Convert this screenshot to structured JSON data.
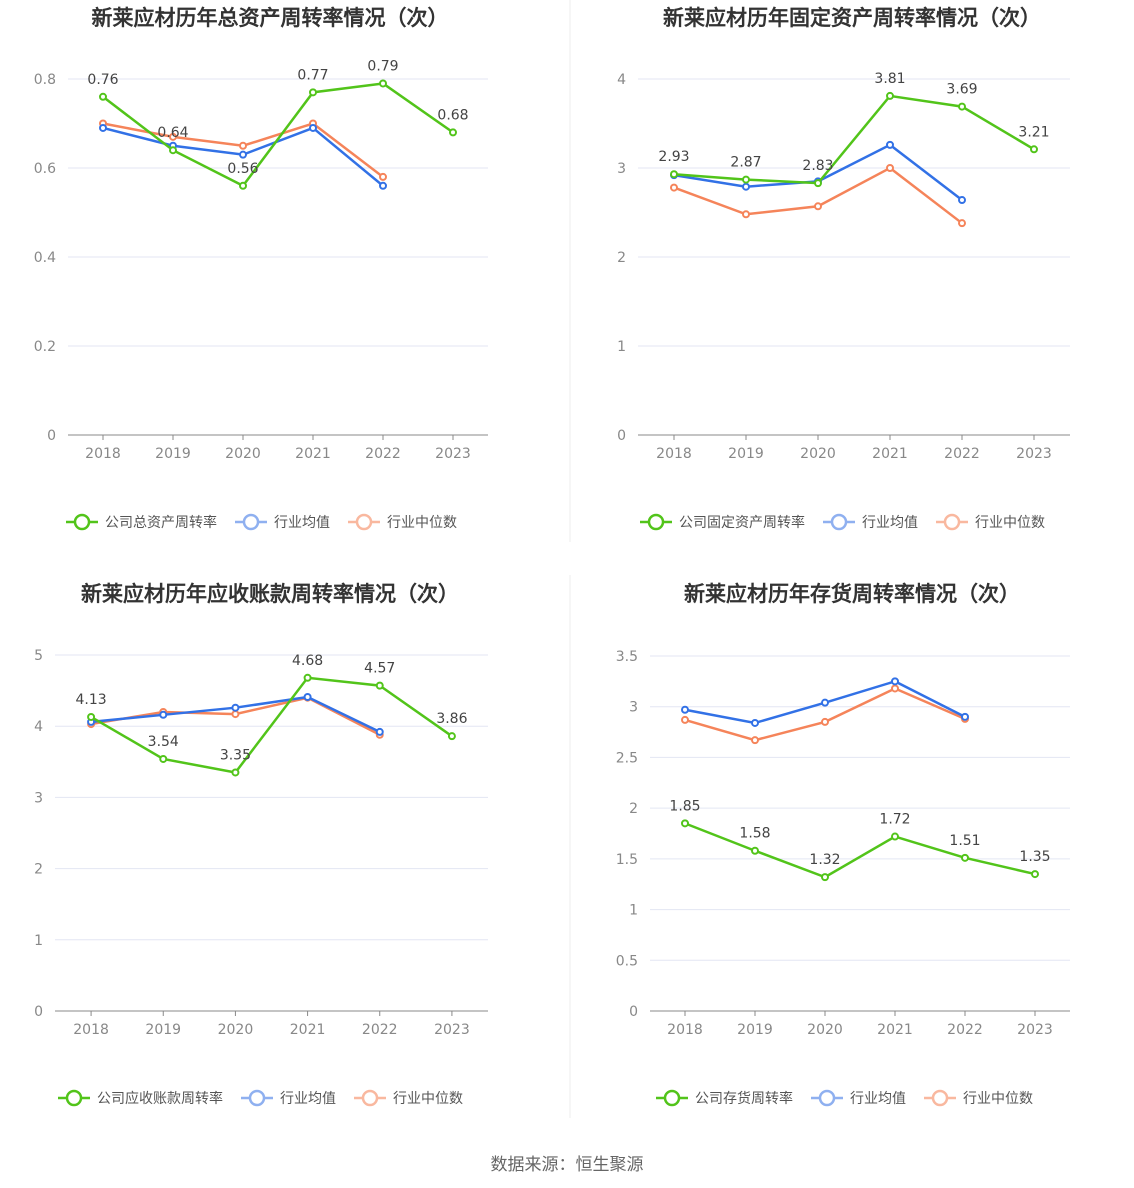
{
  "source": "数据来源：恒生聚源",
  "colors": {
    "company": "#52c41a",
    "avg": "#3271e6",
    "median": "#f5845a",
    "grid": "#e3e6f3",
    "legend_avg": "#8fb0f0",
    "legend_median": "#f9b89f"
  },
  "chart_data": [
    {
      "type": "line",
      "title": "新莱应材历年总资产周转率情况（次）",
      "categories": [
        "2018",
        "2019",
        "2020",
        "2021",
        "2022",
        "2023"
      ],
      "ylim": [
        0,
        0.8
      ],
      "yticks": [
        "0",
        "0.2",
        "0.4",
        "0.6",
        "0.8"
      ],
      "ytick_values": [
        0,
        0.2,
        0.4,
        0.6,
        0.8
      ],
      "series": [
        {
          "name": "公司总资产周转率",
          "values": [
            0.76,
            0.64,
            0.56,
            0.77,
            0.79,
            0.68
          ],
          "labels": [
            "0.76",
            "0.64",
            "0.56",
            "0.77",
            "0.79",
            "0.68"
          ]
        },
        {
          "name": "行业均值",
          "values": [
            0.69,
            0.65,
            0.63,
            0.69,
            0.56,
            null
          ]
        },
        {
          "name": "行业中位数",
          "values": [
            0.7,
            0.67,
            0.65,
            0.7,
            0.58,
            null
          ]
        }
      ]
    },
    {
      "type": "line",
      "title": "新莱应材历年固定资产周转率情况（次）",
      "categories": [
        "2018",
        "2019",
        "2020",
        "2021",
        "2022",
        "2023"
      ],
      "ylim": [
        0,
        4
      ],
      "yticks": [
        "0",
        "1",
        "2",
        "3",
        "4"
      ],
      "ytick_values": [
        0,
        1,
        2,
        3,
        4
      ],
      "series": [
        {
          "name": "公司固定资产周转率",
          "values": [
            2.93,
            2.87,
            2.83,
            3.81,
            3.69,
            3.21
          ],
          "labels": [
            "2.93",
            "2.87",
            "2.83",
            "3.81",
            "3.69",
            "3.21"
          ]
        },
        {
          "name": "行业均值",
          "values": [
            2.92,
            2.79,
            2.85,
            3.26,
            2.64,
            null
          ]
        },
        {
          "name": "行业中位数",
          "values": [
            2.78,
            2.48,
            2.57,
            3.0,
            2.38,
            null
          ]
        }
      ]
    },
    {
      "type": "line",
      "title": "新莱应材历年应收账款周转率情况（次）",
      "categories": [
        "2018",
        "2019",
        "2020",
        "2021",
        "2022",
        "2023"
      ],
      "ylim": [
        0,
        5
      ],
      "yticks": [
        "0",
        "1",
        "2",
        "3",
        "4",
        "5"
      ],
      "ytick_values": [
        0,
        1,
        2,
        3,
        4,
        5
      ],
      "series": [
        {
          "name": "公司应收账款周转率",
          "values": [
            4.13,
            3.54,
            3.35,
            4.68,
            4.57,
            3.86
          ],
          "labels": [
            "4.13",
            "3.54",
            "3.35",
            "4.68",
            "4.57",
            "3.86"
          ]
        },
        {
          "name": "行业均值",
          "values": [
            4.06,
            4.16,
            4.26,
            4.41,
            3.92,
            null
          ]
        },
        {
          "name": "行业中位数",
          "values": [
            4.03,
            4.2,
            4.17,
            4.4,
            3.88,
            null
          ]
        }
      ]
    },
    {
      "type": "line",
      "title": "新莱应材历年存货周转率情况（次）",
      "categories": [
        "2018",
        "2019",
        "2020",
        "2021",
        "2022",
        "2023"
      ],
      "ylim": [
        0,
        3.5
      ],
      "yticks": [
        "0",
        "0.5",
        "1",
        "1.5",
        "2",
        "2.5",
        "3",
        "3.5"
      ],
      "ytick_values": [
        0,
        0.5,
        1,
        1.5,
        2,
        2.5,
        3,
        3.5
      ],
      "series": [
        {
          "name": "公司存货周转率",
          "values": [
            1.85,
            1.58,
            1.32,
            1.72,
            1.51,
            1.35
          ],
          "labels": [
            "1.85",
            "1.58",
            "1.32",
            "1.72",
            "1.51",
            "1.35"
          ]
        },
        {
          "name": "行业均值",
          "values": [
            2.97,
            2.84,
            3.04,
            3.25,
            2.9,
            null
          ]
        },
        {
          "name": "行业中位数",
          "values": [
            2.87,
            2.67,
            2.85,
            3.18,
            2.88,
            null
          ]
        }
      ]
    }
  ]
}
